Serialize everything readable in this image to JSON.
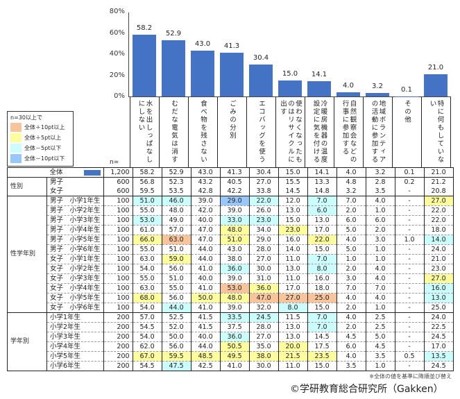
{
  "chart_data": {
    "type": "bar",
    "ylim": [
      0,
      80
    ],
    "yticks": [
      "0%",
      "20%",
      "40%",
      "60%",
      "80%"
    ],
    "categories": [
      "水を出しっぱなしにしない",
      "むだな電気は消す",
      "食べ物を残さない",
      "ごみの分別",
      "エコバッグを使う",
      "使わなくなったものはリサイクルに出す",
      "冷暖房機器の温度設定に気を付ける",
      "自然観察会などの行事に参加する",
      "地域ボランティアの活動に参加する",
      "その他",
      "特に何もしていない"
    ],
    "values": [
      58.2,
      52.9,
      43.0,
      41.3,
      30.4,
      15.0,
      14.1,
      4.0,
      3.2,
      0.1,
      21.0
    ],
    "value_labels": [
      "58.2",
      "52.9",
      "43.0",
      "41.3",
      "30.4",
      "15.0",
      "14.1",
      "4.0",
      "3.2",
      "0.1",
      "21.0"
    ],
    "bar_color": "#4472c4"
  },
  "n_label": "n=",
  "legend": {
    "title": "n=30以上で",
    "items": [
      {
        "label": "全体＋10pt以上",
        "color": "#f8c49c"
      },
      {
        "label": "全体＋5pt以上",
        "color": "#fdfd9e"
      },
      {
        "label": "全体－5pt以下",
        "color": "#ccfdfd"
      },
      {
        "label": "全体－10pt以下",
        "color": "#99c7fc"
      }
    ]
  },
  "table": {
    "groups": [
      {
        "label": "",
        "rows": [
          {
            "label": "全体",
            "n": "1,200",
            "values": [
              "58.2",
              "52.9",
              "43.0",
              "41.3",
              "30.4",
              "15.0",
              "14.1",
              "4.0",
              "3.2",
              "0.1",
              "21.0"
            ],
            "hl": [
              "",
              "",
              "",
              "",
              "",
              "",
              "",
              "",
              "",
              "",
              ""
            ],
            "swatch": "#4472c4"
          }
        ]
      },
      {
        "label": "性別",
        "dashed": false,
        "rows": [
          {
            "label": "男子",
            "n": "600",
            "values": [
              "56.8",
              "52.3",
              "43.2",
              "40.5",
              "27.0",
              "15.5",
              "13.3",
              "4.8",
              "2.8",
              "0.2",
              "21.2"
            ],
            "hl": [
              "",
              "",
              "",
              "",
              "",
              "",
              "",
              "",
              "",
              "",
              ""
            ]
          },
          {
            "label": "女子",
            "n": "600",
            "values": [
              "59.5",
              "53.5",
              "42.8",
              "42.2",
              "33.8",
              "14.5",
              "14.8",
              "3.2",
              "3.5",
              "-",
              "20.8"
            ],
            "hl": [
              "",
              "",
              "",
              "",
              "",
              "",
              "",
              "",
              "",
              "",
              ""
            ]
          }
        ]
      },
      {
        "label": "性学年別",
        "dashed": true,
        "rows": [
          {
            "label": "男子　小学1年生",
            "n": "100",
            "values": [
              "51.0",
              "46.0",
              "39.0",
              "29.0",
              "22.0",
              "12.0",
              "7.0",
              "7.0",
              "4.0",
              "-",
              "27.0"
            ],
            "hl": [
              "c",
              "c",
              "",
              "b",
              "c",
              "",
              "c",
              "",
              "",
              "",
              "y"
            ]
          },
          {
            "label": "男子　小学2年生",
            "n": "100",
            "values": [
              "55.0",
              "48.0",
              "42.0",
              "39.0",
              "26.0",
              "13.0",
              "6.0",
              "2.0",
              "1.0",
              "-",
              "22.0"
            ],
            "hl": [
              "",
              "",
              "",
              "",
              "",
              "",
              "c",
              "",
              "",
              "",
              ""
            ]
          },
          {
            "label": "男子　小学3年生",
            "n": "100",
            "values": [
              "53.0",
              "49.0",
              "40.0",
              "33.0",
              "23.0",
              "15.0",
              "13.0",
              "6.0",
              "6.0",
              "-",
              "22.0"
            ],
            "hl": [
              "c",
              "",
              "",
              "c",
              "c",
              "",
              "",
              "",
              "",
              "",
              ""
            ]
          },
          {
            "label": "男子　小学4年生",
            "n": "100",
            "values": [
              "61.0",
              "57.0",
              "47.0",
              "48.0",
              "34.0",
              "23.0",
              "17.0",
              "5.0",
              "2.0",
              "-",
              "18.0"
            ],
            "hl": [
              "",
              "",
              "",
              "y",
              "",
              "y",
              "",
              "",
              "",
              "",
              ""
            ]
          },
          {
            "label": "男子　小学5年生",
            "n": "100",
            "values": [
              "66.0",
              "63.0",
              "47.0",
              "51.0",
              "29.0",
              "16.0",
              "22.0",
              "4.0",
              "3.0",
              "1.0",
              "14.0"
            ],
            "hl": [
              "y",
              "o",
              "",
              "y",
              "",
              "",
              "y",
              "",
              "",
              "",
              "c"
            ]
          },
          {
            "label": "男子　小学6年生",
            "n": "100",
            "values": [
              "55.0",
              "51.0",
              "44.0",
              "43.0",
              "28.0",
              "14.0",
              "15.0",
              "5.0",
              "1.0",
              "-",
              "24.0"
            ],
            "hl": [
              "",
              "",
              "",
              "",
              "",
              "",
              "",
              "",
              "",
              "",
              ""
            ]
          },
          {
            "label": "女子　小学1年生",
            "n": "100",
            "values": [
              "63.0",
              "59.0",
              "44.0",
              "38.0",
              "27.0",
              "11.0",
              "7.0",
              "1.0",
              "1.0",
              "-",
              "21.0"
            ],
            "hl": [
              "",
              "y",
              "",
              "",
              "",
              "",
              "c",
              "",
              "",
              "",
              ""
            ]
          },
          {
            "label": "女子　小学2年生",
            "n": "100",
            "values": [
              "54.0",
              "56.0",
              "41.0",
              "36.0",
              "30.0",
              "13.0",
              "8.0",
              "2.0",
              "4.0",
              "-",
              "23.0"
            ],
            "hl": [
              "",
              "",
              "",
              "c",
              "",
              "",
              "c",
              "",
              "",
              "",
              ""
            ]
          },
          {
            "label": "女子　小学3年生",
            "n": "100",
            "values": [
              "55.0",
              "51.0",
              "40.0",
              "39.0",
              "31.0",
              "11.0",
              "16.0",
              "3.0",
              "4.0",
              "-",
              "27.0"
            ],
            "hl": [
              "",
              "",
              "",
              "",
              "",
              "",
              "",
              "",
              "",
              "",
              "y"
            ]
          },
          {
            "label": "女子　小学4年生",
            "n": "100",
            "values": [
              "63.0",
              "55.0",
              "41.0",
              "53.0",
              "36.0",
              "17.0",
              "18.0",
              "7.0",
              "7.0",
              "-",
              "16.0"
            ],
            "hl": [
              "",
              "",
              "",
              "o",
              "y",
              "",
              "",
              "",
              "",
              "",
              "c"
            ]
          },
          {
            "label": "女子　小学5年生",
            "n": "100",
            "values": [
              "68.0",
              "56.0",
              "50.0",
              "48.0",
              "47.0",
              "27.0",
              "25.0",
              "4.0",
              "4.0",
              "-",
              "13.0"
            ],
            "hl": [
              "y",
              "",
              "y",
              "y",
              "o",
              "o",
              "o",
              "",
              "",
              "",
              "c"
            ]
          },
          {
            "label": "女子　小学6年生",
            "n": "100",
            "values": [
              "54.0",
              "44.0",
              "41.0",
              "39.0",
              "32.0",
              "8.0",
              "15.0",
              "2.0",
              "1.0",
              "-",
              "25.0"
            ],
            "hl": [
              "",
              "c",
              "",
              "",
              "",
              "c",
              "",
              "",
              "",
              "",
              ""
            ]
          }
        ]
      },
      {
        "label": "学年別",
        "dashed": true,
        "rows": [
          {
            "label": "小学1年生",
            "n": "200",
            "values": [
              "57.0",
              "52.5",
              "41.5",
              "33.5",
              "24.5",
              "11.5",
              "7.0",
              "4.0",
              "2.5",
              "-",
              "24.0"
            ],
            "hl": [
              "",
              "",
              "",
              "c",
              "c",
              "",
              "c",
              "",
              "",
              "",
              ""
            ]
          },
          {
            "label": "小学2年生",
            "n": "200",
            "values": [
              "54.5",
              "52.0",
              "41.5",
              "37.5",
              "28.0",
              "13.0",
              "7.0",
              "2.0",
              "2.5",
              "-",
              "22.5"
            ],
            "hl": [
              "",
              "",
              "",
              "",
              "",
              "",
              "c",
              "",
              "",
              "",
              ""
            ]
          },
          {
            "label": "小学3年生",
            "n": "200",
            "values": [
              "54.0",
              "50.0",
              "40.0",
              "36.0",
              "27.0",
              "13.0",
              "14.5",
              "4.5",
              "5.0",
              "-",
              "24.5"
            ],
            "hl": [
              "",
              "",
              "",
              "c",
              "",
              "",
              "",
              "",
              "",
              "",
              ""
            ]
          },
          {
            "label": "小学4年生",
            "n": "200",
            "values": [
              "62.0",
              "56.0",
              "44.0",
              "50.5",
              "35.0",
              "20.0",
              "17.5",
              "6.0",
              "4.5",
              "-",
              "17.0"
            ],
            "hl": [
              "",
              "",
              "",
              "y",
              "",
              "y",
              "",
              "",
              "",
              "",
              ""
            ]
          },
          {
            "label": "小学5年生",
            "n": "200",
            "values": [
              "67.0",
              "59.5",
              "48.5",
              "49.5",
              "38.0",
              "21.5",
              "23.5",
              "4.0",
              "3.5",
              "0.5",
              "13.5"
            ],
            "hl": [
              "y",
              "y",
              "y",
              "y",
              "y",
              "y",
              "y",
              "",
              "",
              "",
              "c"
            ]
          },
          {
            "label": "小学6年生",
            "n": "200",
            "values": [
              "54.5",
              "47.5",
              "42.5",
              "41.0",
              "30.0",
              "11.0",
              "15.0",
              "3.5",
              "1.0",
              "-",
              "24.5"
            ],
            "hl": [
              "",
              "c",
              "",
              "",
              "",
              "",
              "",
              "",
              "",
              "",
              ""
            ]
          }
        ]
      }
    ]
  },
  "note": "※全体の値を基準に降順並び替え",
  "copyright": "©学研教育総合研究所（Gakken）"
}
